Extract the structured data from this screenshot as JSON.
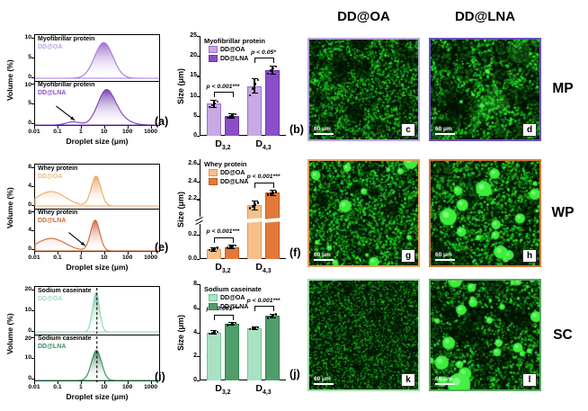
{
  "figure": {
    "col_headers": [
      "DD@OA",
      "DD@LNA"
    ],
    "row_labels": [
      "MP",
      "WP",
      "SC"
    ]
  },
  "chart_data": [
    {
      "id": "a",
      "host": "dist-a",
      "type": "area",
      "panel_letter": "(a)",
      "ylabel": "Volume (%)",
      "xlabel": "Droplet size (μm)",
      "ylim": [
        0,
        10
      ],
      "yticks": [
        0,
        5,
        10
      ],
      "xlog_range": [
        -2,
        3.4
      ],
      "xticks": [
        {
          "label": "0.01",
          "log": -2
        },
        {
          "label": "0.1",
          "log": -1
        },
        {
          "label": "1",
          "log": 0
        },
        {
          "label": "10",
          "log": 1
        },
        {
          "label": "100",
          "log": 2
        },
        {
          "label": "1000",
          "log": 3
        }
      ],
      "series": [
        {
          "title": "Myofibrillar protein",
          "sample": "DD@OA",
          "sample_color": "#bda2e2",
          "line": "#a578d8",
          "grad": "#8d55c6",
          "peaks": [
            {
              "c": 10,
              "h": 9.0,
              "w": 0.4
            }
          ]
        },
        {
          "title": "Myofibrillar protein",
          "sample": "DD@LNA",
          "sample_color": "#8a4fc8",
          "line": "#7a3fc0",
          "grad": "#5c21a6",
          "peaks": [
            {
              "c": 12,
              "h": 7.0,
              "w": 0.36
            },
            {
              "c": 28,
              "h": 2.5,
              "w": 0.5
            },
            {
              "c": 0.45,
              "h": 0.8,
              "w": 0.3
            }
          ],
          "arrow": {
            "tail_um": 0.08,
            "tail_v": 4.8,
            "tip_um": 0.5,
            "tip_v": 1.2
          }
        }
      ]
    },
    {
      "id": "b",
      "host": "bar-b",
      "type": "bar",
      "panel_letter": "(b)",
      "legend_title": "Myofibrillar protein",
      "ylabel": "Size (μm)",
      "axis": [
        {
          "range": [
            0,
            25
          ],
          "frac": [
            0,
            1
          ]
        }
      ],
      "yticks": [
        {
          "v": 0,
          "label": "0"
        },
        {
          "v": 5,
          "label": "5"
        },
        {
          "v": 10,
          "label": "10"
        },
        {
          "v": 15,
          "label": "15"
        },
        {
          "v": 20,
          "label": "20"
        },
        {
          "v": 25,
          "label": "25"
        }
      ],
      "categories": [
        {
          "base": "D",
          "sub": "3,2"
        },
        {
          "base": "D",
          "sub": "4,3"
        }
      ],
      "series": [
        {
          "name": "DD@OA",
          "color": "#c9a8e6",
          "border": "#9a70cc",
          "values": [
            8.0,
            12.5
          ],
          "errors": [
            0.9,
            1.8
          ],
          "dots": [
            [
              7.2,
              7.7,
              8.1,
              8.6
            ],
            [
              10.1,
              11.8,
              12.9,
              14.0
            ]
          ]
        },
        {
          "name": "DD@LNA",
          "color": "#8a4fc8",
          "border": "#6b35ad",
          "values": [
            5.0,
            16.5
          ],
          "errors": [
            0.5,
            1.0
          ],
          "dots": [
            [
              4.5,
              4.8,
              5.1,
              5.4
            ],
            [
              15.5,
              16.3,
              16.9,
              17.3
            ]
          ]
        }
      ],
      "sig": [
        "p < 0.001***",
        "p < 0.05*"
      ]
    },
    {
      "id": "e",
      "host": "dist-e",
      "type": "area",
      "panel_letter": "(e)",
      "ylabel": "Volume (%)",
      "xlabel": "Droplet size (μm)",
      "ylim": [
        0,
        8
      ],
      "yticks": [
        0,
        4,
        8
      ],
      "xlog_range": [
        -2,
        3.4
      ],
      "xticks": [
        {
          "label": "0.01",
          "log": -2
        },
        {
          "label": "0.1",
          "log": -1
        },
        {
          "label": "1",
          "log": 0
        },
        {
          "label": "10",
          "log": 1
        },
        {
          "label": "100",
          "log": 2
        },
        {
          "label": "1000",
          "log": 3
        }
      ],
      "series": [
        {
          "title": "Whey protein",
          "sample": "DD@OA",
          "sample_color": "#f2b97e",
          "line": "#eda963",
          "grad": "#e8954a",
          "peaks": [
            {
              "c": 0.05,
              "h": 3.05,
              "w": 0.62
            },
            {
              "c": 4.6,
              "h": 6.3,
              "w": 0.21
            }
          ]
        },
        {
          "title": "Whey protein",
          "sample": "DD@LNA",
          "sample_color": "#d06a36",
          "line": "#d06a36",
          "grad": "#cc4b28",
          "peaks": [
            {
              "c": 0.05,
              "h": 2.65,
              "w": 0.62
            },
            {
              "c": 4.2,
              "h": 6.5,
              "w": 0.2
            }
          ],
          "arrow": {
            "tail_um": 0.28,
            "tail_v": 3.9,
            "tip_um": 1.4,
            "tip_v": 1.1
          }
        }
      ]
    },
    {
      "id": "f",
      "host": "bar-f",
      "type": "bar",
      "panel_letter": "(f)",
      "legend_title": "Whey protein",
      "ylabel": "Size (μm)",
      "axis": [
        {
          "range": [
            0,
            0.28
          ],
          "frac": [
            0,
            0.34
          ]
        },
        {
          "range": [
            2.02,
            2.65
          ],
          "frac": [
            0.44,
            1
          ]
        }
      ],
      "break_frac": [
        0.34,
        0.44
      ],
      "yticks": [
        {
          "v": 0,
          "label": "0.0"
        },
        {
          "v": 0.2,
          "label": "0.2"
        },
        {
          "v": 2.2,
          "label": "2.2"
        },
        {
          "v": 2.4,
          "label": "2.4"
        },
        {
          "v": 2.6,
          "label": "2.6"
        }
      ],
      "categories": [
        {
          "base": "D",
          "sub": "3,2"
        },
        {
          "base": "D",
          "sub": "4,3"
        }
      ],
      "series": [
        {
          "name": "DD@OA",
          "color": "#f7c08b",
          "border": "#dd9852",
          "values": [
            0.08,
            2.13
          ],
          "errors": [
            0.015,
            0.05
          ],
          "dots": [
            [
              0.073,
              0.079,
              0.085,
              0.091
            ],
            [
              2.1,
              2.12,
              2.14,
              2.16
            ]
          ]
        },
        {
          "name": "DD@LNA",
          "color": "#e2793a",
          "border": "#bf5c1f",
          "values": [
            0.1,
            2.27
          ],
          "errors": [
            0.012,
            0.03
          ],
          "dots": [
            [
              0.093,
              0.099,
              0.105,
              0.111
            ],
            [
              2.25,
              2.26,
              2.27,
              2.28
            ]
          ]
        }
      ],
      "sig": [
        "p < 0.001***",
        "p < 0.001***"
      ]
    },
    {
      "id": "i",
      "host": "dist-i",
      "type": "area",
      "panel_letter": "(i)",
      "ylabel": "Volume (%)",
      "xlabel": "Droplet size (μm)",
      "ylim": [
        0,
        20
      ],
      "yticks": [
        0,
        10,
        20
      ],
      "xlog_range": [
        -2,
        3.4
      ],
      "dash_um": 4.5,
      "xticks": [
        {
          "label": "0.01",
          "log": -2
        },
        {
          "label": "0.1",
          "log": -1
        },
        {
          "label": "1",
          "log": 0
        },
        {
          "label": "10",
          "log": 1
        },
        {
          "label": "100",
          "log": 2
        },
        {
          "label": "1000",
          "log": 3
        }
      ],
      "series": [
        {
          "title": "Sodium caseinate",
          "sample": "DD@OA",
          "sample_color": "#9ddcbb",
          "line": "#8fd6ae",
          "grad": "#4fb47e",
          "peaks": [
            {
              "c": 4.6,
              "h": 19.0,
              "w": 0.15
            }
          ]
        },
        {
          "title": "Sodium caseinate",
          "sample": "DD@LNA",
          "sample_color": "#3c8f5f",
          "line": "#2f8f55",
          "grad": "#1e6f3e",
          "peaks": [
            {
              "c": 4.8,
              "h": 14.5,
              "w": 0.22
            }
          ]
        }
      ]
    },
    {
      "id": "j",
      "host": "bar-j",
      "type": "bar",
      "panel_letter": "(j)",
      "legend_title": "Sodium caseinate",
      "ylabel": "Size (μm)",
      "axis": [
        {
          "range": [
            0,
            8
          ],
          "frac": [
            0,
            1
          ]
        }
      ],
      "yticks": [
        {
          "v": 0,
          "label": "0"
        },
        {
          "v": 2,
          "label": "2"
        },
        {
          "v": 4,
          "label": "4"
        },
        {
          "v": 6,
          "label": "6"
        },
        {
          "v": 8,
          "label": "8"
        }
      ],
      "categories": [
        {
          "base": "D",
          "sub": "3,2"
        },
        {
          "base": "D",
          "sub": "4,3"
        }
      ],
      "series": [
        {
          "name": "DD@OA",
          "color": "#a9e2c3",
          "border": "#74c498",
          "values": [
            4.0,
            4.35
          ],
          "errors": [
            0.12,
            0.1
          ],
          "dots": [
            [
              3.9,
              3.95,
              4.0,
              4.05
            ],
            [
              4.25,
              4.3,
              4.35,
              4.42
            ]
          ]
        },
        {
          "name": "DD@LNA",
          "color": "#4f9d6b",
          "border": "#367e50",
          "values": [
            4.7,
            5.35
          ],
          "errors": [
            0.1,
            0.15
          ],
          "dots": [
            [
              4.6,
              4.65,
              4.7,
              4.78
            ],
            [
              5.2,
              5.3,
              5.4,
              5.5
            ]
          ]
        }
      ],
      "sig": [
        "p < 0.001***",
        "p < 0.001***"
      ]
    }
  ],
  "micrographs": [
    {
      "letter": "c",
      "row": "MP",
      "col": "DD@OA",
      "border": "#b9a6d9",
      "scale_label": "60 μm",
      "seed": 7,
      "speckle": 2800,
      "rmin": 0.4,
      "rmax": 1.3,
      "dark": 26,
      "dark_r": 8,
      "blobs": []
    },
    {
      "letter": "d",
      "row": "MP",
      "col": "DD@LNA",
      "border": "#6a52c0",
      "scale_label": "60 μm",
      "seed": 13,
      "speckle": 2300,
      "rmin": 0.4,
      "rmax": 1.6,
      "dark": 34,
      "dark_r": 10,
      "blobs": [
        {
          "count": 8,
          "rmin": 6,
          "rmax": 13,
          "color": "#3ddb3d",
          "alpha": 0.22
        },
        {
          "count": 5,
          "rmin": 1.5,
          "rmax": 3.5,
          "color": "#44ee44",
          "alpha": 1
        }
      ]
    },
    {
      "letter": "g",
      "row": "WP",
      "col": "DD@OA",
      "border": "#e0a060",
      "scale_label": "60 μm",
      "seed": 33,
      "speckle": 2700,
      "rmin": 0.4,
      "rmax": 1.4,
      "dark": 16,
      "dark_r": 7,
      "blobs": [
        {
          "count": 10,
          "rmin": 2,
          "rmax": 5,
          "color": "#3bee3b",
          "alpha": 1
        },
        {
          "count": 4,
          "rmin": 5,
          "rmax": 8,
          "color": "#3bee3b",
          "alpha": 1
        }
      ]
    },
    {
      "letter": "h",
      "row": "WP",
      "col": "DD@LNA",
      "border": "#cc7a35",
      "scale_label": "60 μm",
      "seed": 44,
      "speckle": 2500,
      "rmin": 0.4,
      "rmax": 1.5,
      "dark": 20,
      "dark_r": 9,
      "blobs": [
        {
          "count": 12,
          "rmin": 2,
          "rmax": 6,
          "color": "#3bee3b",
          "alpha": 1
        },
        {
          "count": 5,
          "rmin": 6,
          "rmax": 10,
          "color": "#3bee3b",
          "alpha": 1
        }
      ]
    },
    {
      "letter": "k",
      "row": "SC",
      "col": "DD@OA",
      "border": "#a6dcae",
      "scale_label": "60 μm",
      "seed": 55,
      "speckle": 3600,
      "rmin": 0.3,
      "rmax": 0.9,
      "dark": 8,
      "dark_r": 5,
      "blobs": []
    },
    {
      "letter": "l",
      "row": "SC",
      "col": "DD@LNA",
      "border": "#58a860",
      "scale_label": "60 μm",
      "seed": 66,
      "speckle": 2400,
      "rmin": 0.4,
      "rmax": 1.4,
      "dark": 30,
      "dark_r": 9,
      "blobs": [
        {
          "count": 22,
          "rmin": 1.5,
          "rmax": 5,
          "color": "#3bee3b",
          "alpha": 1
        },
        {
          "count": 8,
          "rmin": 5,
          "rmax": 9,
          "color": "#3bee3b",
          "alpha": 1
        },
        {
          "count": 1,
          "rmin": 12,
          "rmax": 14,
          "color": "#44f044",
          "alpha": 1
        }
      ]
    }
  ]
}
